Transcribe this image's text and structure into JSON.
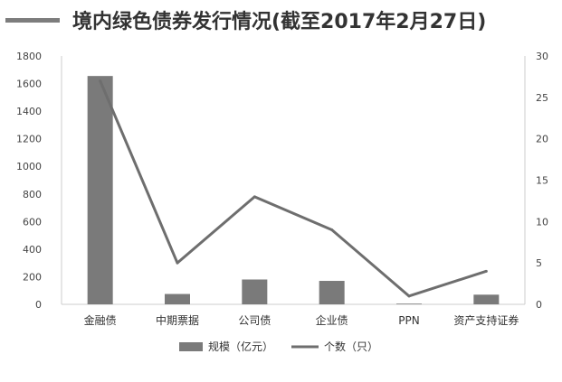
{
  "chart_data": {
    "type": "bar",
    "title": "境内绿色债券发行情况(截至2017年2月27日)",
    "categories": [
      "金融债",
      "中期票据",
      "公司债",
      "企业债",
      "PPN",
      "资产支持证券"
    ],
    "series": [
      {
        "name": "规模（亿元）",
        "type": "bar",
        "axis": "left",
        "values": [
          1655,
          75,
          180,
          170,
          5,
          70
        ]
      },
      {
        "name": "个数（只）",
        "type": "line",
        "axis": "right",
        "values": [
          27,
          5,
          13,
          9,
          1,
          4
        ]
      }
    ],
    "y_left": {
      "min": 0,
      "max": 1800,
      "ticks": [
        0,
        200,
        400,
        600,
        800,
        1000,
        1200,
        1400,
        1600,
        1800
      ]
    },
    "y_right": {
      "min": 0,
      "max": 30,
      "ticks": [
        0,
        5,
        10,
        15,
        20,
        25,
        30
      ]
    },
    "grid": false,
    "legend_position": "bottom",
    "colors": {
      "bar": "#7a7a7a",
      "line": "#6e6e6e",
      "axis": "#cccccc",
      "title_bar": "#7d7d7d"
    }
  }
}
